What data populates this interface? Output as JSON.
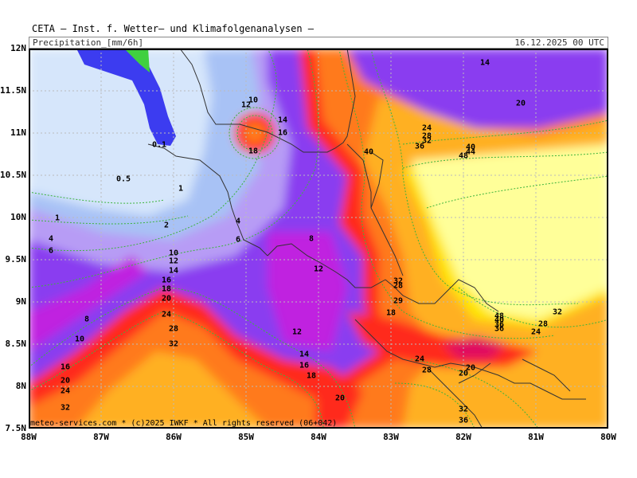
{
  "header": {
    "title": "CETA — Inst. f. Wetter— und Klimafolgenanalysen —",
    "variable": "Precipitation_[mm/6h]",
    "valid_time": "16.12.2025 00 UTC"
  },
  "footer": {
    "copyright": "meteo-services.com * (c)2025 IWKF * All rights reserved (06+042)"
  },
  "axes": {
    "lat_labels": [
      "12N",
      "11.5N",
      "11N",
      "10.5N",
      "10N",
      "9.5N",
      "9N",
      "8.5N",
      "8N",
      "7.5N"
    ],
    "lon_labels": [
      "88W",
      "87W",
      "86W",
      "85W",
      "84W",
      "83W",
      "82W",
      "81W",
      "80W"
    ]
  },
  "colors": {
    "land_outline": "#333333",
    "contour_line": "#3cb43c",
    "grid_line": "#bbbbbb"
  },
  "contour_labels": [
    "0.1",
    "0.5",
    "1",
    "1",
    "2",
    "4",
    "4",
    "6",
    "6",
    "8",
    "8",
    "10",
    "10",
    "10",
    "12",
    "12",
    "12",
    "14",
    "14",
    "14",
    "16",
    "16",
    "16",
    "18",
    "18",
    "18",
    "18",
    "20",
    "20",
    "20",
    "20",
    "24",
    "24",
    "24",
    "28",
    "28",
    "28",
    "32",
    "32",
    "32",
    "32",
    "36",
    "36",
    "40",
    "40",
    "44",
    "48",
    "48",
    "20",
    "12",
    "16",
    "20",
    "29",
    "28",
    "32",
    "24",
    "36",
    "40",
    "24",
    "28",
    "32",
    "36",
    "14"
  ]
}
